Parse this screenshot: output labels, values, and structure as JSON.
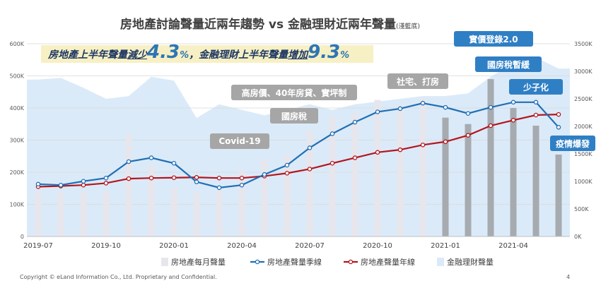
{
  "slide": {
    "title": "房地產討論聲量近兩年趨勢 vs 金融理財近兩年聲量",
    "title_note": "(淺藍底)",
    "banner": {
      "part1": "房地產上半年聲量",
      "part2": "減少",
      "value1": "4.3",
      "unit1": "%",
      "sep": "，",
      "part3": "金融理財上半年聲量",
      "part4": "增加",
      "value2": "9.3",
      "unit2": "%"
    },
    "callouts": {
      "covid": "Covid-19",
      "housing_tax": "國房稅",
      "high_price": "高房價、40年房貸、實坪制",
      "social_housing": "社宅、打房",
      "price_reg": "實價登錄2.0",
      "housing_tax_delay": "國房稅暫緩",
      "low_birth": "少子化",
      "epidemic": "疫情爆發"
    },
    "footer": {
      "copyright": "Copyright © eLand Information Co., Ltd. Proprietary and Confidential.",
      "page": "4"
    },
    "colors": {
      "bar_light": "#e7e6ec",
      "bar_dark": "#a6abb0",
      "area": "#dbeaf8",
      "quarterly_line": "#1f6fb5",
      "annual_line": "#b3161f",
      "banner_bg": "#f7f0c4",
      "callout_gray": "#a6a6a6",
      "callout_blue": "#2f7fc5"
    }
  },
  "chart_data": {
    "type": "bar",
    "x": [
      "2019-07",
      "2019-08",
      "2019-09",
      "2019-10",
      "2019-11",
      "2019-12",
      "2020-01",
      "2020-02",
      "2020-03",
      "2020-04",
      "2020-05",
      "2020-06",
      "2020-07",
      "2020-08",
      "2020-09",
      "2020-10",
      "2020-11",
      "2020-12",
      "2021-01",
      "2021-02",
      "2021-03",
      "2021-04",
      "2021-05",
      "2021-06"
    ],
    "x_tick_labels": [
      "2019-07",
      "2019-10",
      "2020-01",
      "2020-04",
      "2020-07",
      "2020-10",
      "2021-01",
      "2021-04"
    ],
    "y_left": {
      "ticks": [
        "0",
        "100K",
        "200K",
        "300K",
        "400K",
        "500K",
        "600K"
      ],
      "range": [
        0,
        600000
      ]
    },
    "y_right": {
      "ticks": [
        "0K",
        "500K",
        "1000K",
        "1500K",
        "2000K",
        "2500K",
        "3000K",
        "3500K"
      ],
      "range": [
        0,
        3500000
      ]
    },
    "legend": {
      "position": "bottom"
    },
    "series": [
      {
        "name": "房地產每月聲量",
        "kind": "bar",
        "axis": "left",
        "values": [
          140000,
          140000,
          140000,
          140000,
          320000,
          220000,
          150000,
          135000,
          145000,
          205000,
          240000,
          255000,
          330000,
          375000,
          385000,
          425000,
          410000,
          430000,
          370000,
          350000,
          490000,
          400000,
          345000,
          255000
        ]
      },
      {
        "name": "房地產聲量季線",
        "kind": "line",
        "axis": "left",
        "values": [
          163000,
          160000,
          172000,
          182000,
          233000,
          245000,
          228000,
          170000,
          152000,
          160000,
          193000,
          222000,
          276000,
          320000,
          356000,
          388000,
          398000,
          415000,
          402000,
          383000,
          402000,
          418000,
          418000,
          340000
        ]
      },
      {
        "name": "房地產聲量年線",
        "kind": "line",
        "axis": "left",
        "values": [
          155000,
          157000,
          160000,
          166000,
          180000,
          182000,
          183000,
          184000,
          182000,
          182000,
          188000,
          197000,
          210000,
          228000,
          245000,
          262000,
          270000,
          285000,
          295000,
          315000,
          345000,
          362000,
          378000,
          380000
        ]
      },
      {
        "name": "金融理財聲量",
        "kind": "area",
        "axis": "right",
        "values": [
          2850000,
          2880000,
          2700000,
          2500000,
          2550000,
          2900000,
          2830000,
          2150000,
          2400000,
          2300000,
          2200000,
          2300000,
          2400000,
          2300000,
          2400000,
          2450000,
          2500000,
          2550000,
          2550000,
          2600000,
          2900000,
          3150000,
          3250000,
          3050000
        ]
      }
    ]
  }
}
